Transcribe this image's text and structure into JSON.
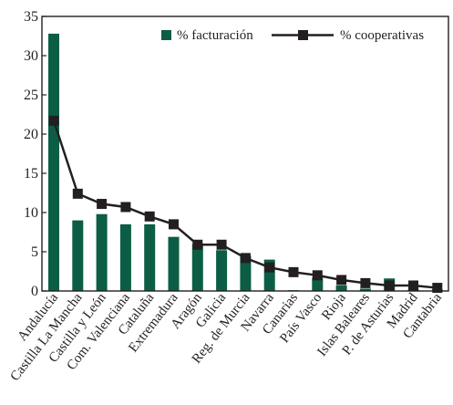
{
  "chart_data": {
    "type": "bar+line",
    "categories": [
      "Andalucía",
      "Castilla La Mancha",
      "Castilla y León",
      "Com. Valenciana",
      "Cataluña",
      "Extremadura",
      "Aragón",
      "Galicia",
      "Reg. de Murcia",
      "Navarra",
      "Canarias",
      "País Vasco",
      "Rioja",
      "Islas Baleares",
      "P. de Asturias",
      "Madrid",
      "Cantabria"
    ],
    "series": [
      {
        "name": "% facturación",
        "type": "bar",
        "color": "#0b5e45",
        "values": [
          32.8,
          9.0,
          9.8,
          8.5,
          8.5,
          6.9,
          6.0,
          5.2,
          4.5,
          4.0,
          0.1,
          1.7,
          0.7,
          0.3,
          1.6,
          0.2,
          0.2
        ]
      },
      {
        "name": "% cooperativas",
        "type": "line",
        "color": "#231f20",
        "marker": "square",
        "values": [
          21.7,
          12.4,
          11.1,
          10.7,
          9.5,
          8.5,
          5.9,
          5.9,
          4.2,
          3.0,
          2.4,
          2.0,
          1.4,
          1.0,
          0.7,
          0.7,
          0.4
        ]
      }
    ],
    "title": "",
    "xlabel": "",
    "ylabel": "",
    "ylim": [
      0,
      35
    ],
    "yticks": [
      "0",
      "5",
      "10",
      "15",
      "20",
      "25",
      "30",
      "35"
    ],
    "grid": false,
    "legend_position": "top-right"
  }
}
